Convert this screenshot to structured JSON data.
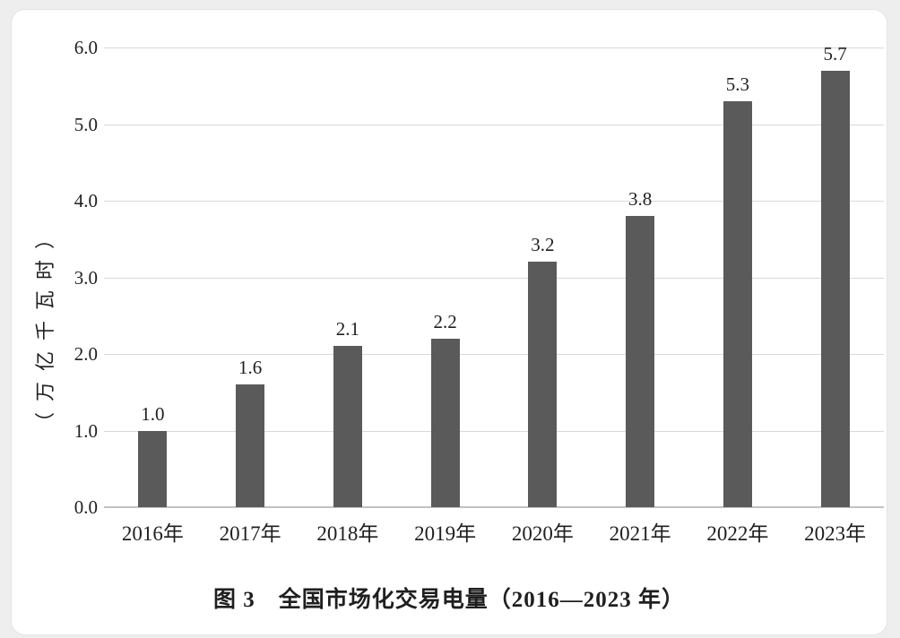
{
  "page": {
    "background_color": "#eeeeee",
    "card_background_color": "#ffffff"
  },
  "figure": {
    "caption": "图 3　全国市场化交易电量（2016—2023 年）"
  },
  "chart_data": {
    "type": "bar",
    "title": "图 3　全国市场化交易电量（2016—2023 年）",
    "ylabel": "（万亿千瓦时）",
    "xlabel": "",
    "categories": [
      "2016年",
      "2017年",
      "2018年",
      "2019年",
      "2020年",
      "2021年",
      "2022年",
      "2023年"
    ],
    "values": [
      1.0,
      1.6,
      2.1,
      2.2,
      3.2,
      3.8,
      5.3,
      5.7
    ],
    "data_labels": [
      "1.0",
      "1.6",
      "2.1",
      "2.2",
      "3.2",
      "3.8",
      "5.3",
      "5.7"
    ],
    "ytick_values": [
      0,
      1,
      2,
      3,
      4,
      5,
      6
    ],
    "ytick_labels": [
      "0.0",
      "1.0",
      "2.0",
      "3.0",
      "4.0",
      "5.0",
      "6.0"
    ],
    "ylim": [
      0,
      6
    ],
    "grid": true,
    "legend": false,
    "bar_color": "#5a5a5a",
    "gridline_color": "#d9d9d9",
    "axis_line_color": "#c2c2c2",
    "text_color": "#1f1f1f"
  }
}
